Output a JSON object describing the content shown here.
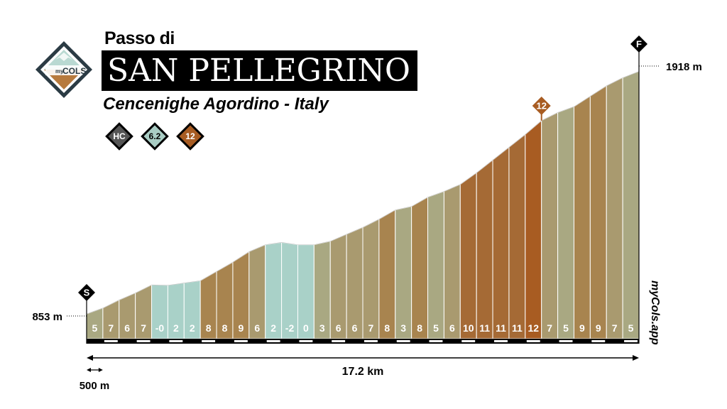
{
  "header": {
    "pretitle": "Passo di",
    "title": "SAN PELLEGRINO",
    "location": "Cencenighe Agordino - Italy",
    "logo_text_top": "my",
    "logo_text_main": "COLS"
  },
  "badges": [
    {
      "label": "HC",
      "color": "#555555",
      "text_color": "#ffffff"
    },
    {
      "label": "6.2",
      "color": "#a9cdc4",
      "text_color": "#000000"
    },
    {
      "label": "12",
      "color": "#a85c22",
      "text_color": "#ffffff"
    }
  ],
  "markers": {
    "start": "S",
    "finish": "F",
    "peak_label": "12"
  },
  "watermark": "myCols.app",
  "colors": {
    "title_bg": "#000000",
    "easy": "#a9d1c8",
    "mid": "#a9a882",
    "steep": "#a56a35",
    "steepest": "#a85c22"
  },
  "chart_data": {
    "type": "area",
    "segment_km": 0.5,
    "total_distance": "17.2 km",
    "scale_label": "500 m",
    "start_elevation_label": "853 m",
    "end_elevation_label": "1918 m",
    "ylim": [
      853,
      1918
    ],
    "gradients": [
      "5",
      "7",
      "6",
      "7",
      "-0",
      "2",
      "2",
      "8",
      "8",
      "9",
      "6",
      "2",
      "-2",
      "0",
      "3",
      "6",
      "6",
      "7",
      "8",
      "3",
      "8",
      "5",
      "6",
      "10",
      "11",
      "11",
      "11",
      "12",
      "7",
      "5",
      "9",
      "9",
      "7",
      "5"
    ],
    "elevations": [
      853,
      878,
      913,
      943,
      978,
      976,
      986,
      996,
      1036,
      1076,
      1121,
      1151,
      1161,
      1151,
      1151,
      1166,
      1196,
      1226,
      1261,
      1301,
      1316,
      1356,
      1381,
      1411,
      1461,
      1516,
      1571,
      1626,
      1686,
      1721,
      1746,
      1791,
      1836,
      1871,
      1898
    ]
  }
}
